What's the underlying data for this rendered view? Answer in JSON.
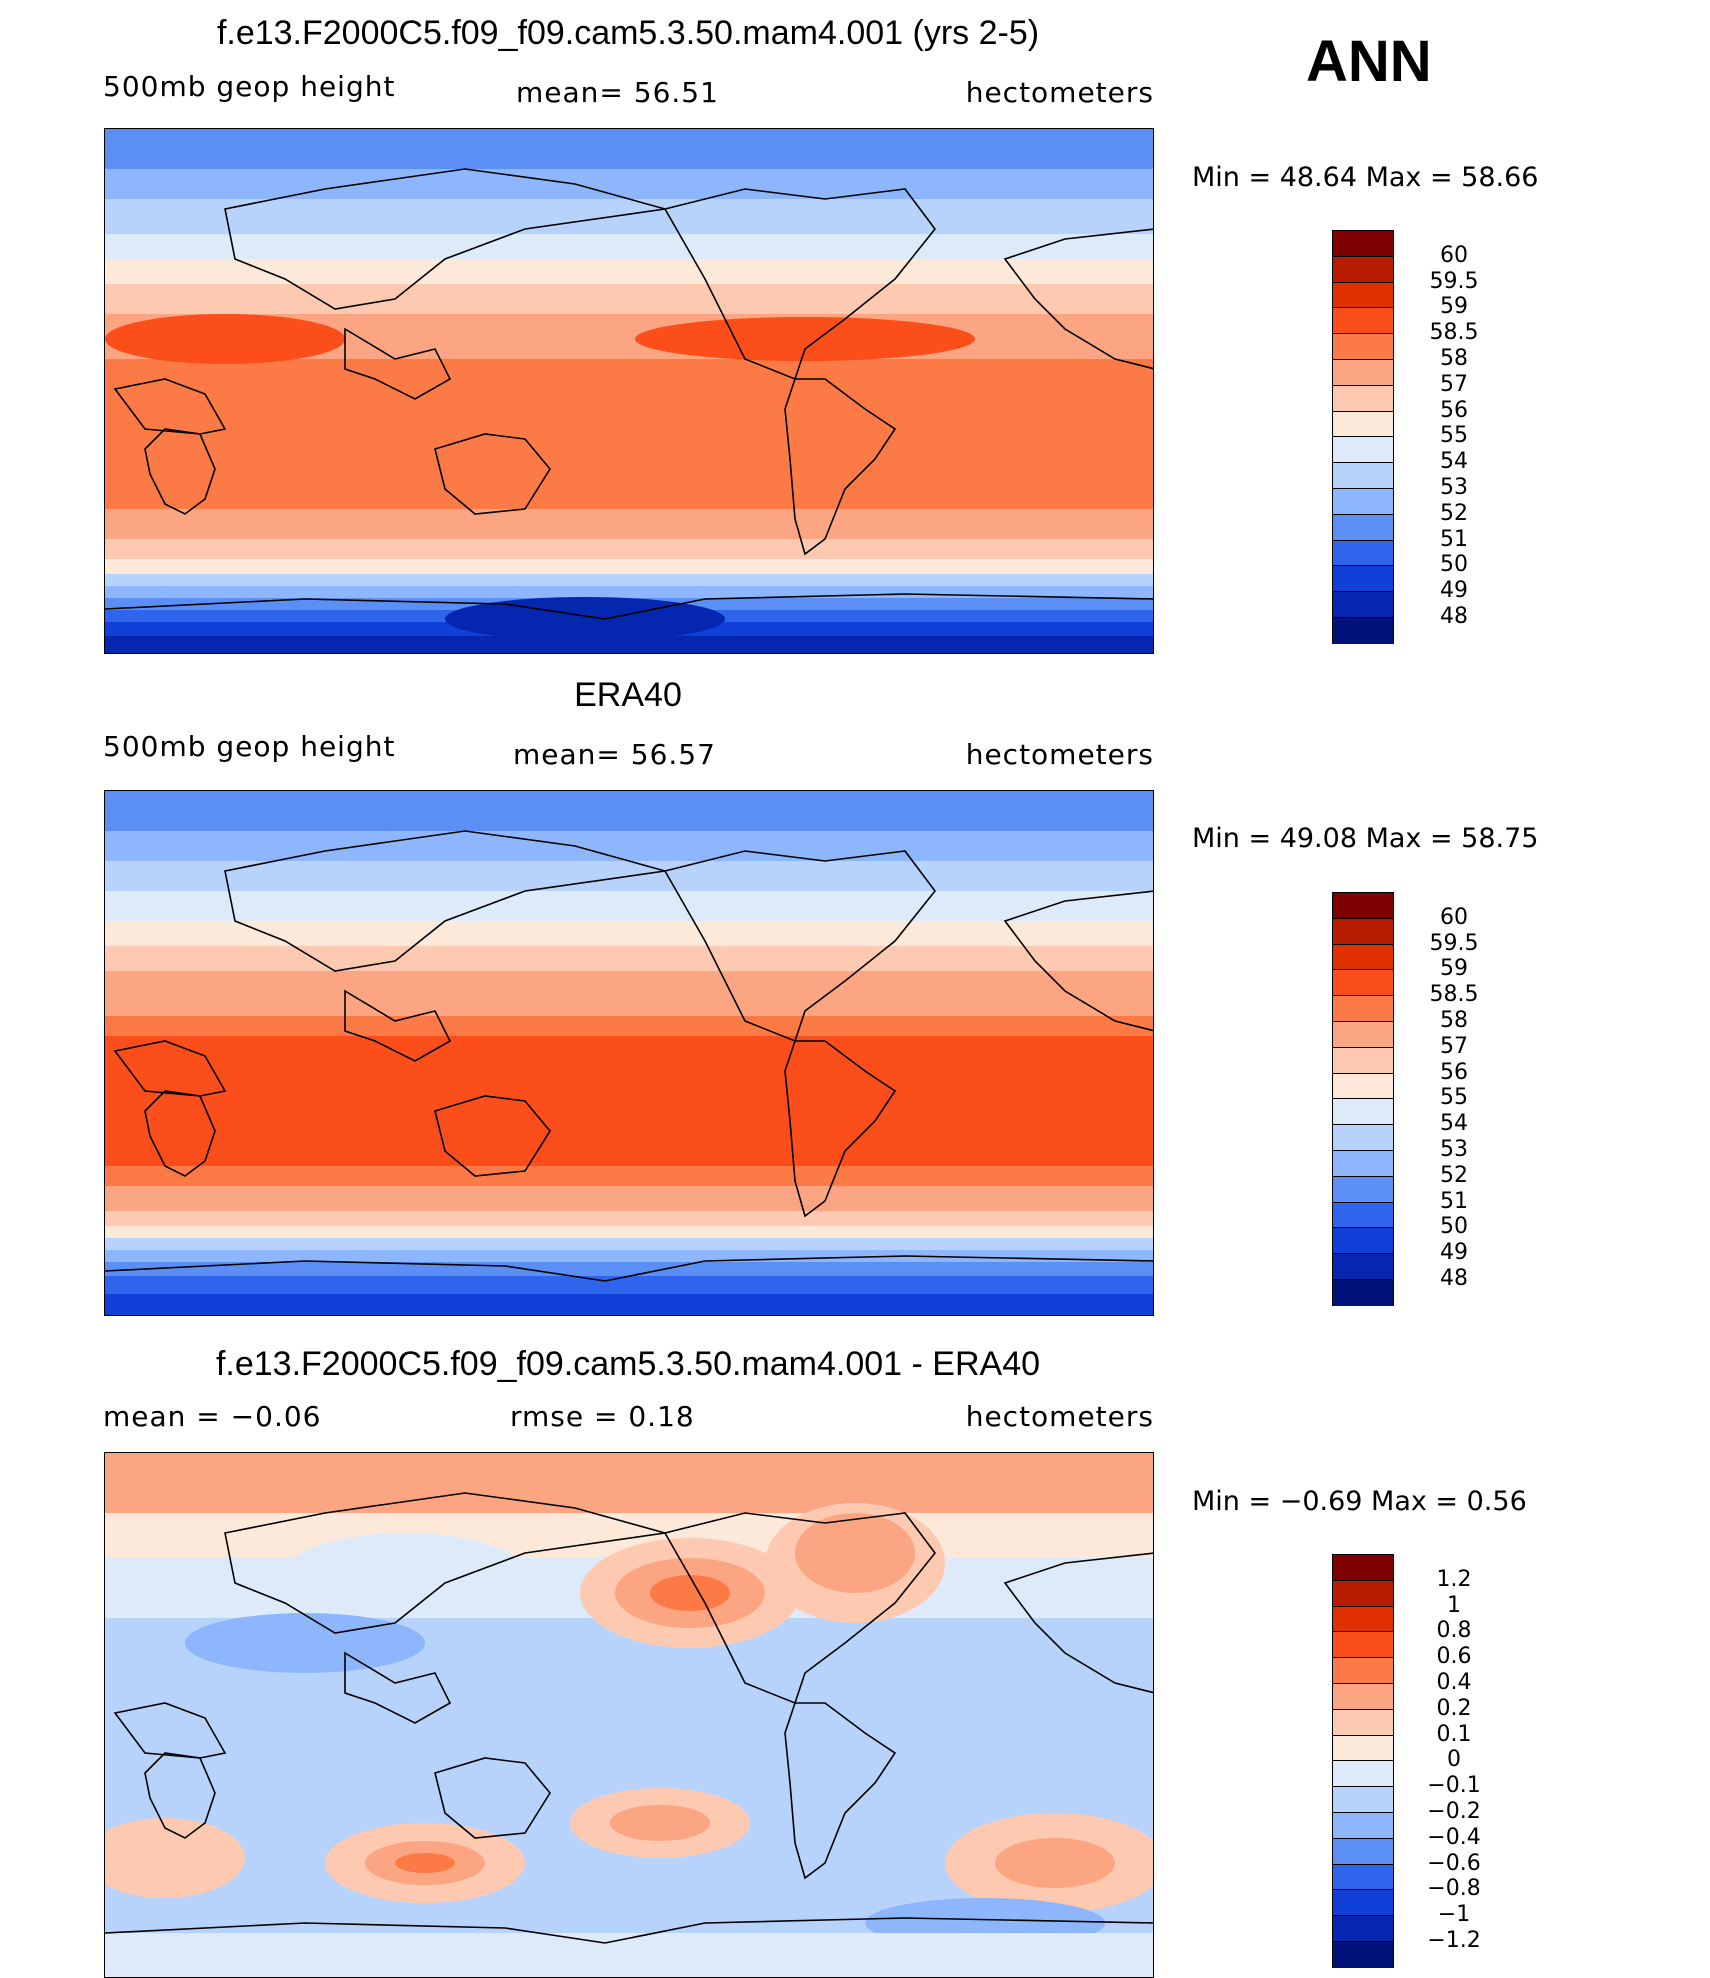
{
  "header": {
    "season": "ANN"
  },
  "panels": [
    {
      "title": "f.e13.F2000C5.f09_f09.cam5.3.50.mam4.001 (yrs 2-5)",
      "left_label": "500mb  geop  height",
      "center_label": "mean=   56.51",
      "right_label": "hectometers",
      "min_label": "Min  =     48.64  Max  =     58.66",
      "field": "model"
    },
    {
      "title": "ERA40",
      "left_label": "500mb  geop  height",
      "center_label": "mean=   56.57",
      "right_label": "hectometers",
      "min_label": "Min  =     49.08  Max  =     58.75",
      "field": "obs"
    },
    {
      "title": "f.e13.F2000C5.f09_f09.cam5.3.50.mam4.001 - ERA40",
      "left_label": "mean  =     −0.06",
      "center_label": "rmse  =      0.18",
      "right_label": "hectometers",
      "min_label": "Min  =    −0.69  Max  =        0.56",
      "field": "diff"
    }
  ],
  "colorbar_abs": {
    "labels": [
      "60",
      "59.5",
      "59",
      "58.5",
      "58",
      "57",
      "56",
      "55",
      "54",
      "53",
      "52",
      "51",
      "50",
      "49",
      "48"
    ],
    "colors": [
      "#7f0000",
      "#b81c00",
      "#e03000",
      "#fb4e1a",
      "#fc7a45",
      "#fca583",
      "#fdcab1",
      "#fde9d9",
      "#dceaf9",
      "#b8d3fb",
      "#8db6fc",
      "#5b8ff6",
      "#2f64ec",
      "#1140d8",
      "#0526ae",
      "#00127a"
    ]
  },
  "colorbar_diff": {
    "labels": [
      "1.2",
      "1",
      "0.8",
      "0.6",
      "0.4",
      "0.2",
      "0.1",
      "0",
      "−0.1",
      "−0.2",
      "−0.4",
      "−0.6",
      "−0.8",
      "−1",
      "−1.2"
    ],
    "colors": [
      "#7f0000",
      "#b81c00",
      "#e03000",
      "#fb4e1a",
      "#fc7a45",
      "#fca583",
      "#fdcab1",
      "#fde9d9",
      "#dceaf9",
      "#b8d3fb",
      "#8db6fc",
      "#5b8ff6",
      "#2f64ec",
      "#1140d8",
      "#0526ae",
      "#00127a"
    ]
  }
}
